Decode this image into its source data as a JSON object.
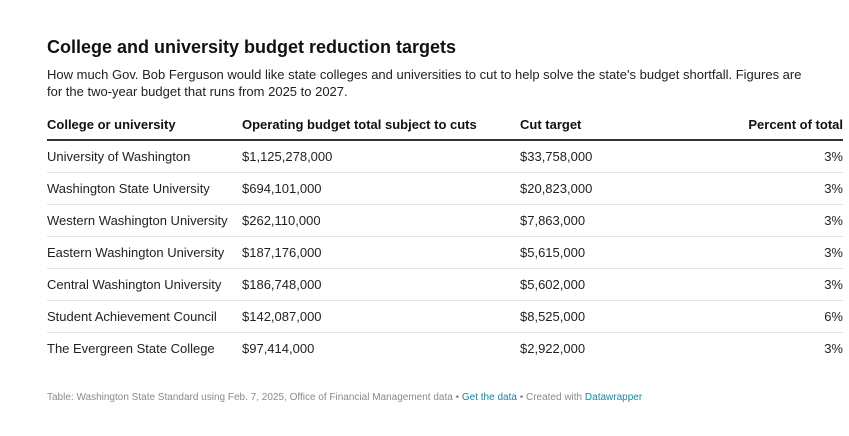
{
  "chart_data": {
    "type": "table",
    "title": "College and university budget reduction targets",
    "subtitle": "How much Gov. Bob Ferguson would like state colleges and universities to cut to help solve the state's budget shortfall. Figures are for the two-year budget that runs from 2025 to 2027.",
    "columns": [
      "College or university",
      "Operating budget total subject to cuts",
      "Cut target",
      "Percent of total"
    ],
    "rows": [
      [
        "University of Washington",
        "$1,125,278,000",
        "$33,758,000",
        "3%"
      ],
      [
        "Washington State University",
        "$694,101,000",
        "$20,823,000",
        "3%"
      ],
      [
        "Western Washington University",
        "$262,110,000",
        "$7,863,000",
        "3%"
      ],
      [
        "Eastern Washington University",
        "$187,176,000",
        "$5,615,000",
        "3%"
      ],
      [
        "Central Washington University",
        "$186,748,000",
        "$5,602,000",
        "3%"
      ],
      [
        "Student Achievement Council",
        "$142,087,000",
        "$8,525,000",
        "6%"
      ],
      [
        "The Evergreen State College",
        "$97,414,000",
        "$2,922,000",
        "3%"
      ]
    ]
  },
  "footer": {
    "source": "Table: Washington State Standard using Feb. 7, 2025, Office of Financial Management data",
    "sep1": " • ",
    "get_data": "Get the data",
    "sep2": " • Created with ",
    "datawrapper": "Datawrapper"
  },
  "colors": {
    "link": "#1d81a2",
    "header_rule": "#333333",
    "row_rule": "#e3e3e3"
  }
}
